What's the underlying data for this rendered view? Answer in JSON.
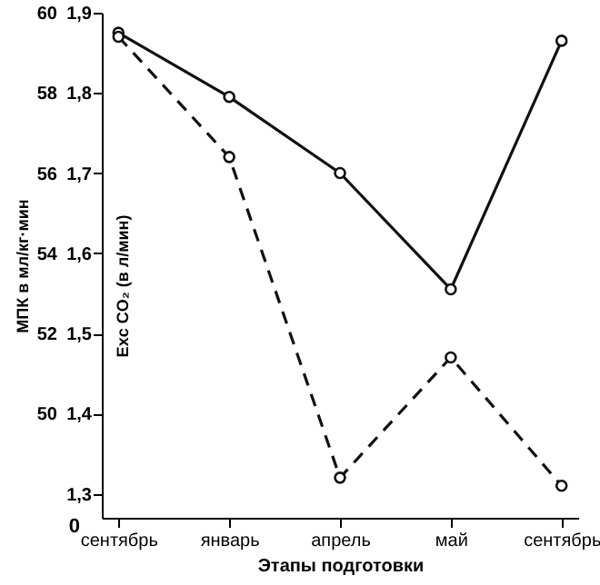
{
  "chart_data": {
    "type": "line",
    "categories": [
      "сентябрь",
      "январь",
      "апрель",
      "май",
      "сентябрь"
    ],
    "xlabel": "Этапы подготовки",
    "ylabel": "МПК в мл/кг·мин",
    "y2label": "Exc CO₂ (в л/мин)",
    "ylim": [
      47.4,
      60
    ],
    "yticks": [
      50,
      52,
      54,
      56,
      58,
      60
    ],
    "annotations": [
      "0"
    ],
    "y2lim": [
      1.27,
      1.9
    ],
    "y2ticks": [
      {
        "value": 1.3,
        "label": "1,3"
      },
      {
        "value": 1.4,
        "label": "1,4"
      },
      {
        "value": 1.5,
        "label": "1,5"
      },
      {
        "value": 1.6,
        "label": "1,6"
      },
      {
        "value": 1.7,
        "label": "1,7"
      },
      {
        "value": 1.8,
        "label": "1,8"
      },
      {
        "value": 1.9,
        "label": "1,9"
      }
    ],
    "series": [
      {
        "color": "#111111",
        "line_style": "solid",
        "values": [
          59.5,
          57.9,
          56.0,
          53.1,
          59.3
        ]
      },
      {
        "color": "#111111",
        "line_style": "dashed",
        "axis": "y2",
        "values": [
          1.87,
          1.72,
          1.32,
          1.47,
          1.31
        ]
      }
    ],
    "marker": "circle",
    "grid": false
  }
}
